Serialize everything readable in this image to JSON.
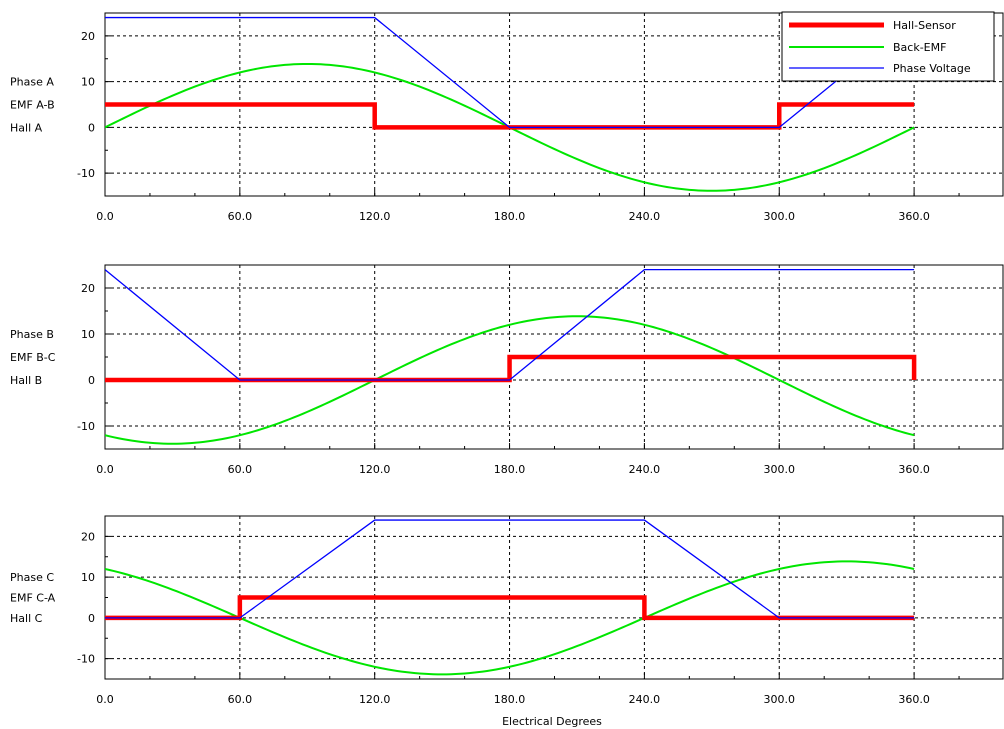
{
  "colors": {
    "hall": "#ff0000",
    "emf": "#00e600",
    "voltage": "#0000ff",
    "grid": "#000000",
    "axis": "#000000"
  },
  "legend": [
    "Hall-Sensor",
    "Back-EMF",
    "Phase Voltage"
  ],
  "xlabel": "Electrical Degrees",
  "chart_data": [
    {
      "type": "line",
      "ylabels": [
        "Phase A",
        "EMF A-B",
        "Hall A"
      ],
      "xlim": [
        0,
        400
      ],
      "ylim": [
        -15,
        25
      ],
      "xticks": [
        0,
        60,
        120,
        180,
        240,
        300,
        360
      ],
      "xtick_labels": [
        "0.0",
        "60.0",
        "120.0",
        "180.0",
        "240.0",
        "300.0",
        "360.0"
      ],
      "yticks": [
        -10,
        0,
        10,
        20
      ],
      "ytick_labels": [
        "-10",
        "0",
        "10",
        "20"
      ],
      "grid": true,
      "legend_position": "top-right",
      "series": [
        {
          "name": "Hall-Sensor",
          "x": [
            0,
            120,
            120,
            300,
            300,
            360
          ],
          "y": [
            5,
            5,
            0,
            0,
            5,
            5
          ]
        },
        {
          "name": "Back-EMF",
          "function": "sine",
          "amplitude": 13.86,
          "phase_deg": 0,
          "x_range": [
            0,
            360
          ]
        },
        {
          "name": "Phase Voltage",
          "x": [
            0,
            120,
            180,
            300,
            360
          ],
          "y": [
            24,
            24,
            0,
            0,
            24
          ]
        }
      ]
    },
    {
      "type": "line",
      "ylabels": [
        "Phase B",
        "EMF B-C",
        "Hall B"
      ],
      "xlim": [
        0,
        400
      ],
      "ylim": [
        -15,
        25
      ],
      "xticks": [
        0,
        60,
        120,
        180,
        240,
        300,
        360
      ],
      "xtick_labels": [
        "0.0",
        "60.0",
        "120.0",
        "180.0",
        "240.0",
        "300.0",
        "360.0"
      ],
      "yticks": [
        -10,
        0,
        10,
        20
      ],
      "ytick_labels": [
        "-10",
        "0",
        "10",
        "20"
      ],
      "grid": true,
      "series": [
        {
          "name": "Hall-Sensor",
          "x": [
            0,
            180,
            180,
            360,
            360
          ],
          "y": [
            0,
            0,
            5,
            5,
            0
          ]
        },
        {
          "name": "Back-EMF",
          "function": "sine",
          "amplitude": 13.86,
          "phase_deg": 120,
          "x_range": [
            0,
            360
          ]
        },
        {
          "name": "Phase Voltage",
          "x": [
            0,
            60,
            180,
            240,
            360
          ],
          "y": [
            24,
            0,
            0,
            24,
            24
          ]
        }
      ]
    },
    {
      "type": "line",
      "ylabels": [
        "Phase C",
        "EMF C-A",
        "Hall C"
      ],
      "xlim": [
        0,
        400
      ],
      "ylim": [
        -15,
        25
      ],
      "xticks": [
        0,
        60,
        120,
        180,
        240,
        300,
        360
      ],
      "xtick_labels": [
        "0.0",
        "60.0",
        "120.0",
        "180.0",
        "240.0",
        "300.0",
        "360.0"
      ],
      "yticks": [
        -10,
        0,
        10,
        20
      ],
      "ytick_labels": [
        "-10",
        "0",
        "10",
        "20"
      ],
      "grid": true,
      "series": [
        {
          "name": "Hall-Sensor",
          "x": [
            0,
            60,
            60,
            240,
            240,
            360
          ],
          "y": [
            0,
            0,
            5,
            5,
            0,
            0
          ]
        },
        {
          "name": "Back-EMF",
          "function": "sine",
          "amplitude": 13.86,
          "phase_deg": 240,
          "x_range": [
            0,
            360
          ]
        },
        {
          "name": "Phase Voltage",
          "x": [
            0,
            60,
            120,
            240,
            300,
            360
          ],
          "y": [
            0,
            0,
            24,
            24,
            0,
            0
          ]
        }
      ]
    }
  ]
}
